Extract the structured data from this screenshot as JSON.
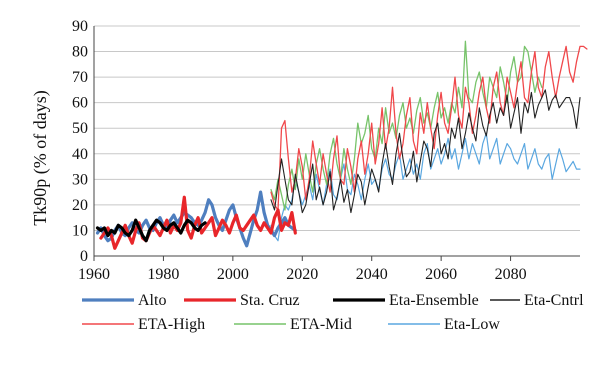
{
  "chart_data": {
    "type": "line",
    "title": "",
    "xlabel": "",
    "ylabel": "Tk90p  (% of days)",
    "xlim": [
      1960,
      2100
    ],
    "ylim": [
      0,
      90
    ],
    "xticks": [
      1960,
      1980,
      2000,
      2020,
      2040,
      2060,
      2080
    ],
    "yticks": [
      0,
      10,
      20,
      30,
      40,
      50,
      60,
      70,
      80,
      90
    ],
    "grid": "horizontal",
    "legend_position": "bottom",
    "colors": {
      "Alto": "#4f7fbf",
      "Sta. Cruz": "#e8262a",
      "Eta-Ensemble": "#000000",
      "Eta-Cntrl": "#222222",
      "ETA-High": "#f0484b",
      "ETA-Mid": "#77c36a",
      "Eta-Low": "#5aa7e0"
    },
    "series": [
      {
        "name": "Alto",
        "x_start": 1961,
        "values": [
          9,
          11,
          8,
          6,
          7,
          10,
          12,
          9,
          8,
          11,
          13,
          10,
          9,
          12,
          14,
          11,
          10,
          13,
          15,
          12,
          11,
          14,
          16,
          13,
          15,
          17,
          16,
          15,
          13,
          12,
          14,
          17,
          22,
          20,
          15,
          12,
          10,
          14,
          18,
          20,
          15,
          11,
          7,
          4,
          9,
          14,
          18,
          25,
          17,
          12,
          10,
          8,
          11,
          13,
          15,
          12,
          11,
          10
        ]
      },
      {
        "name": "Sta. Cruz",
        "x_start": 1962,
        "values": [
          7,
          9,
          11,
          8,
          3,
          6,
          9,
          12,
          8,
          5,
          10,
          13,
          7,
          6,
          9,
          12,
          10,
          8,
          11,
          14,
          9,
          12,
          10,
          13,
          23,
          10,
          7,
          12,
          15,
          9,
          11,
          13,
          15,
          8,
          11,
          14,
          12,
          9,
          13,
          16,
          11,
          10,
          12,
          14,
          16,
          12,
          10,
          13,
          11,
          9,
          15,
          18,
          10,
          13,
          12,
          17,
          9
        ]
      },
      {
        "name": "Eta-Ensemble",
        "x_start": 1961,
        "values": [
          11,
          10,
          11,
          8,
          10,
          9,
          12,
          11,
          9,
          8,
          10,
          14,
          11,
          8,
          6,
          10,
          12,
          14,
          13,
          11,
          10,
          12,
          13,
          11,
          9,
          12,
          14,
          13,
          11,
          10,
          12,
          13
        ]
      },
      {
        "name": "Eta-Cntrl",
        "x_start": 2011,
        "values": [
          22,
          18,
          28,
          38,
          30,
          22,
          20,
          32,
          25,
          17,
          20,
          28,
          36,
          22,
          27,
          20,
          25,
          33,
          18,
          23,
          30,
          21,
          26,
          17,
          24,
          32,
          29,
          20,
          27,
          34,
          30,
          25,
          36,
          44,
          35,
          28,
          40,
          48,
          38,
          31,
          33,
          41,
          29,
          37,
          45,
          42,
          35,
          48,
          52,
          40,
          44,
          38,
          50,
          46,
          54,
          42,
          48,
          56,
          50,
          45,
          58,
          51,
          47,
          55,
          60,
          52,
          58,
          55,
          63,
          50,
          56,
          62,
          48,
          60,
          56,
          64,
          54,
          59,
          62,
          65,
          57,
          61,
          63,
          58,
          60,
          62,
          62,
          58,
          50,
          62
        ]
      },
      {
        "name": "ETA-High",
        "x_start": 2011,
        "values": [
          25,
          20,
          18,
          50,
          53,
          38,
          25,
          30,
          42,
          35,
          22,
          30,
          45,
          36,
          28,
          40,
          32,
          25,
          38,
          47,
          30,
          28,
          42,
          35,
          25,
          38,
          45,
          32,
          40,
          52,
          36,
          44,
          58,
          42,
          50,
          66,
          48,
          38,
          44,
          55,
          62,
          45,
          40,
          56,
          48,
          60,
          50,
          42,
          55,
          64,
          52,
          48,
          58,
          70,
          55,
          50,
          66,
          60,
          48,
          55,
          64,
          70,
          58,
          52,
          66,
          72,
          60,
          55,
          70,
          64,
          58,
          68,
          76,
          62,
          60,
          72,
          80,
          66,
          62,
          74,
          80,
          70,
          62,
          70,
          76,
          82,
          72,
          68,
          76,
          82,
          82,
          81
        ]
      },
      {
        "name": "ETA-Mid",
        "x_start": 2011,
        "values": [
          26,
          22,
          30,
          24,
          18,
          28,
          34,
          26,
          38,
          30,
          40,
          32,
          25,
          36,
          42,
          34,
          28,
          40,
          46,
          36,
          30,
          42,
          34,
          28,
          38,
          52,
          44,
          48,
          55,
          42,
          38,
          50,
          44,
          58,
          48,
          52,
          46,
          55,
          60,
          50,
          54,
          48,
          57,
          62,
          52,
          56,
          50,
          58,
          64,
          54,
          58,
          52,
          60,
          56,
          66,
          58,
          84,
          62,
          60,
          68,
          72,
          64,
          58,
          70,
          66,
          62,
          74,
          68,
          60,
          72,
          78,
          68,
          70,
          82,
          80,
          72,
          64,
          70,
          66
        ]
      },
      {
        "name": "Eta-Low",
        "x_start": 2011,
        "values": [
          12,
          8,
          6,
          15,
          20,
          18,
          22,
          30,
          25,
          20,
          24,
          28,
          22,
          32,
          26,
          20,
          28,
          34,
          24,
          22,
          30,
          36,
          26,
          24,
          32,
          28,
          22,
          30,
          36,
          28,
          30,
          26,
          34,
          38,
          32,
          30,
          36,
          40,
          30,
          34,
          38,
          32,
          36,
          30,
          40,
          44,
          34,
          38,
          42,
          36,
          40,
          46,
          38,
          42,
          34,
          40,
          46,
          38,
          44,
          40,
          36,
          44,
          48,
          38,
          42,
          46,
          36,
          40,
          44,
          42,
          38,
          36,
          40,
          44,
          34,
          38,
          42,
          36,
          34,
          38,
          40,
          30,
          36,
          42,
          38,
          33,
          35,
          37,
          34,
          34
        ]
      }
    ]
  }
}
